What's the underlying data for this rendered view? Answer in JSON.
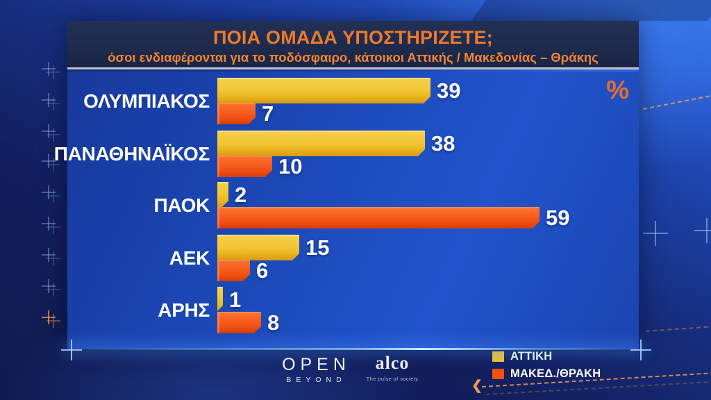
{
  "chart_data": {
    "type": "bar",
    "orientation": "horizontal",
    "title": "ΠΟΙΑ ΟΜΑΔΑ ΥΠΟΣΤΗΡΙΖΕΤΕ;",
    "subtitle": "όσοι ενδιαφέρονται για το ποδόσφαιρο, κάτοικοι Αττικής / Μακεδονίας – Θράκης",
    "unit": "%",
    "categories": [
      "ΟΛΥΜΠΙΑΚΟΣ",
      "ΠΑΝΑΘΗΝΑΪΚΟΣ",
      "ΠΑΟΚ",
      "ΑΕΚ",
      "ΑΡΗΣ"
    ],
    "series": [
      {
        "name": "ΑΤΤΙΚΗ",
        "color": "#f3c42c",
        "values": [
          39,
          38,
          2,
          15,
          1
        ]
      },
      {
        "name": "ΜΑΚΕΔ./ΘΡΑΚΗ",
        "color": "#f4500f",
        "values": [
          7,
          10,
          59,
          6,
          8
        ]
      }
    ],
    "xlim": [
      0,
      62
    ],
    "grid": false,
    "legend_position": "bottom-right"
  },
  "footer": {
    "open_logo": "OPEN",
    "open_sub": "BEYOND",
    "alco_logo": "alco",
    "alco_tagline": "The pulse of society"
  },
  "colors": {
    "title_orange": "#ee7a2b",
    "panel_header_navy": "#1d2a4c",
    "panel_body_blue": "#1c49b8",
    "attiki_yellow": "#f3c42c",
    "maked_orange": "#f4500f",
    "value_text": "#ffffff"
  }
}
